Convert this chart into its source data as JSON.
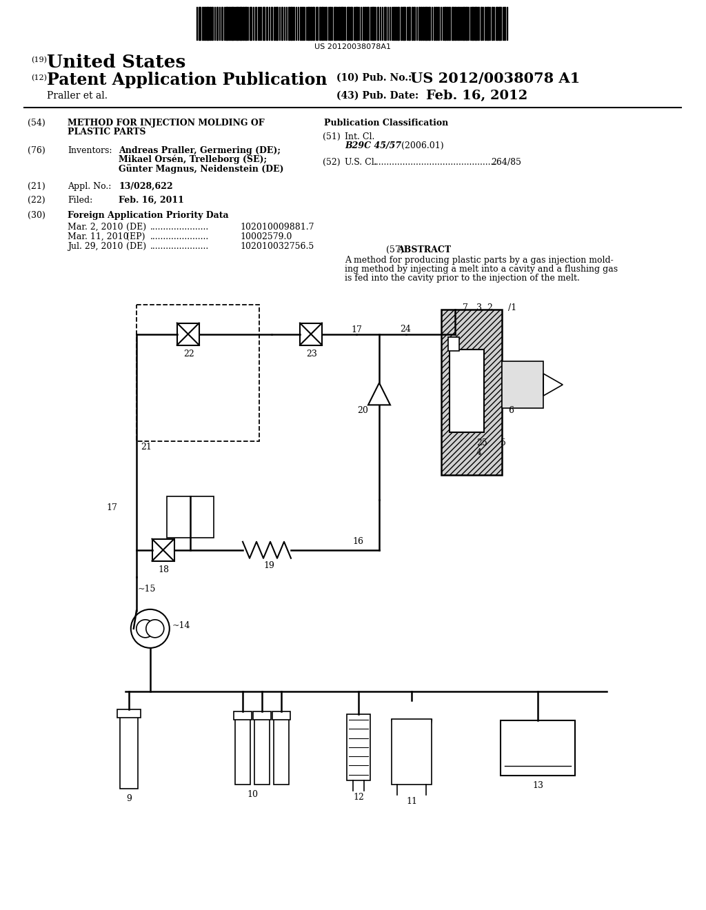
{
  "background_color": "#ffffff",
  "barcode_text": "US 20120038078A1",
  "header": {
    "country_prefix": "(19)",
    "country": "United States",
    "type_prefix": "(12)",
    "type": "Patent Application Publication",
    "pub_no_prefix": "(10) Pub. No.:",
    "pub_no": "US 2012/0038078 A1",
    "authors": "Praller et al.",
    "date_prefix": "(43) Pub. Date:",
    "date": "Feb. 16, 2012"
  },
  "priority_data": [
    {
      "date": "Mar. 2, 2010",
      "country": "(DE)",
      "number": "102010009881.7"
    },
    {
      "date": "Mar. 11, 2010",
      "country": "(EP)",
      "number": "10002579.0"
    },
    {
      "date": "Jul. 29, 2010",
      "country": "(DE)",
      "number": "102010032756.5"
    }
  ],
  "pub_class_header": "Publication Classification",
  "abstract_header": "ABSTRACT",
  "abstract_line1": "A method for producing plastic parts by a gas injection mold-",
  "abstract_line2": "ing method by injecting a melt into a cavity and a flushing gas",
  "abstract_line3": "is fed into the cavity prior to the injection of the melt."
}
